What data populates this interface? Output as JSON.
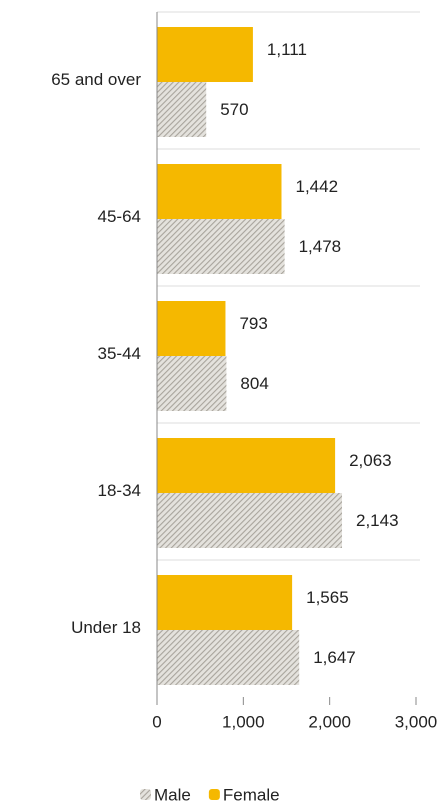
{
  "chart_data": {
    "type": "barh",
    "categories": [
      "65 and over",
      "45-64",
      "35-44",
      "18-34",
      "Under 18"
    ],
    "series": [
      {
        "name": "Male",
        "color": "#a8a49c",
        "pattern": "hatch",
        "values": [
          570,
          1478,
          804,
          2143,
          1647
        ],
        "value_labels": [
          "570",
          "1,478",
          "804",
          "2,143",
          "1,647"
        ]
      },
      {
        "name": "Female",
        "color": "#f5b800",
        "values": [
          1111,
          1442,
          793,
          2063,
          1565
        ],
        "value_labels": [
          "1,111",
          "1,442",
          "793",
          "2,063",
          "1,565"
        ]
      }
    ],
    "xlim": [
      0,
      3000
    ],
    "xticks": [
      0,
      {
        "value": 1000,
        "label": "1,000"
      },
      {
        "value": 2000,
        "label": "2,000"
      },
      {
        "value": 3000,
        "label": "3,000"
      }
    ],
    "legend": "bottom"
  }
}
